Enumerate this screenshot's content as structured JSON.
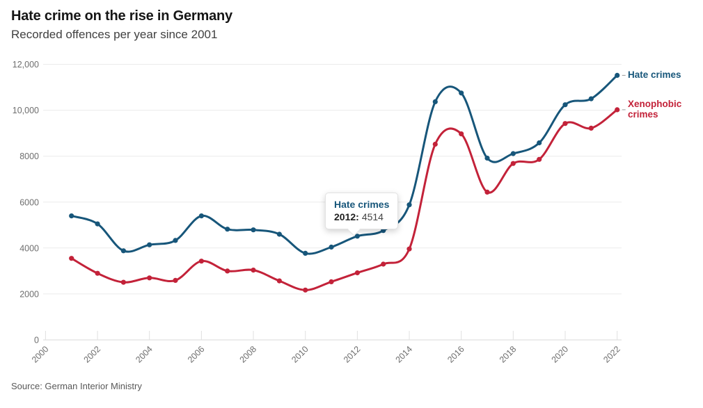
{
  "header": {
    "title": "Hate crime on the rise in Germany",
    "subtitle": "Recorded offences per year since 2001"
  },
  "source": {
    "text": "Source: German Interior Ministry"
  },
  "colors": {
    "hate_series": "#17567A",
    "xeno_series": "#C32239",
    "gridline": "#ebebeb",
    "zero_line": "#d9d9d9",
    "axis_text": "#6e6e6e"
  },
  "tooltip": {
    "series_label": "Hate crimes",
    "year_label": "2012:",
    "value": "4514"
  },
  "end_labels": {
    "hate": "Hate crimes",
    "xeno": "Xenophobic crimes"
  },
  "chart_data": {
    "type": "line",
    "title": "Hate crime on the rise in Germany",
    "subtitle": "Recorded offences per year since 2001",
    "xlabel": "",
    "ylabel": "",
    "grid": "horizontal",
    "legend_position": "end-of-line",
    "xlim": [
      2000,
      2022
    ],
    "ylim": [
      0,
      12000
    ],
    "x": [
      2001,
      2002,
      2003,
      2004,
      2005,
      2006,
      2007,
      2008,
      2009,
      2010,
      2011,
      2012,
      2013,
      2014,
      2015,
      2016,
      2017,
      2018,
      2019,
      2020,
      2021,
      2022
    ],
    "series": [
      {
        "name": "Hate crimes",
        "color": "#17567A",
        "values": [
          5400,
          5050,
          3880,
          4140,
          4330,
          5400,
          4820,
          4790,
          4600,
          3770,
          4040,
          4514,
          4760,
          5880,
          10370,
          10750,
          7915,
          8110,
          8580,
          10240,
          10500,
          11520
        ]
      },
      {
        "name": "Xenophobic crimes",
        "color": "#C32239",
        "values": [
          3550,
          2900,
          2510,
          2700,
          2590,
          3430,
          3000,
          3040,
          2570,
          2170,
          2530,
          2922,
          3300,
          3960,
          8520,
          8970,
          6435,
          7680,
          7860,
          9420,
          9220,
          10020
        ]
      }
    ],
    "x_ticks": [
      2000,
      2002,
      2004,
      2006,
      2008,
      2010,
      2012,
      2014,
      2016,
      2018,
      2020,
      2022
    ],
    "y_ticks": [
      {
        "v": 0,
        "label": "0"
      },
      {
        "v": 2000,
        "label": "2000"
      },
      {
        "v": 4000,
        "label": "4000"
      },
      {
        "v": 6000,
        "label": "6000"
      },
      {
        "v": 8000,
        "label": "8000"
      },
      {
        "v": 10000,
        "label": "10,000"
      },
      {
        "v": 12000,
        "label": "12,000"
      }
    ],
    "annotation": {
      "series": "Hate crimes",
      "year": 2012,
      "value": 4514
    }
  }
}
